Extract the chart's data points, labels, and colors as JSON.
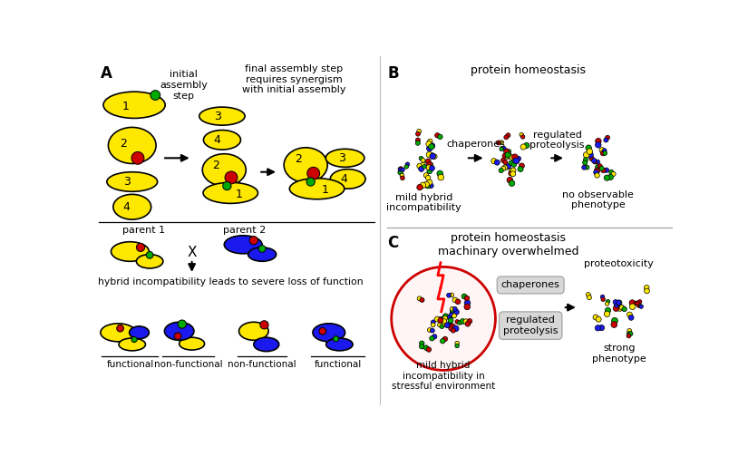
{
  "bg_color": "#ffffff",
  "yellow": "#FFE800",
  "blue": "#1a1aee",
  "red": "#CC0000",
  "green": "#00AA00",
  "text_color": "#000000",
  "label_A": "A",
  "label_B": "B",
  "label_C": "C",
  "title_b": "protein homeostasis",
  "title_c": "protein homeostasis\nmachinary overwhelmed",
  "text_b1": "mild hybrid\nincompatibility",
  "text_b2": "chaperones",
  "text_b3": "regulated\nproteolysis",
  "text_b4": "no observable\nphenotype",
  "text_c1": "mild hybrid\nincompatibility in\nstressful environment",
  "text_c2": "chaperones",
  "text_c3": "regulated\nproteolysis",
  "text_c4": "proteotoxicity",
  "text_c5": "strong\nphenotype",
  "text_a1": "initial\nassembly\nstep",
  "text_a2": "final assembly step\nrequires synergism\nwith initial assembly",
  "text_a3": "parent 1",
  "text_a4": "parent 2",
  "text_a5": "hybrid incompatibility leads to severe loss of function",
  "text_a6": "functional",
  "text_a7": "non-functional",
  "text_a8": "non-functional",
  "text_a9": "functional"
}
